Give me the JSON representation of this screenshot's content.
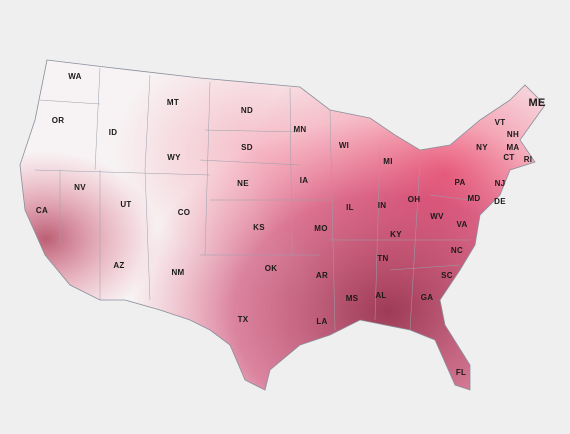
{
  "map": {
    "state_labels": [
      "WA",
      "OR",
      "ID",
      "MT",
      "ND",
      "SD",
      "WY",
      "MN",
      "WI",
      "MI",
      "NE",
      "IA",
      "NV",
      "UT",
      "CO",
      "KS",
      "MO",
      "IL",
      "IN",
      "OH",
      "PA",
      "NY",
      "VT",
      "NH",
      "ME",
      "MA",
      "CT",
      "RI",
      "NJ",
      "MD",
      "DE",
      "WV",
      "VA",
      "KY",
      "TN",
      "NC",
      "SC",
      "GA",
      "AL",
      "MS",
      "AR",
      "LA",
      "OK",
      "TX",
      "NM",
      "AZ",
      "CA",
      "FL"
    ]
  }
}
